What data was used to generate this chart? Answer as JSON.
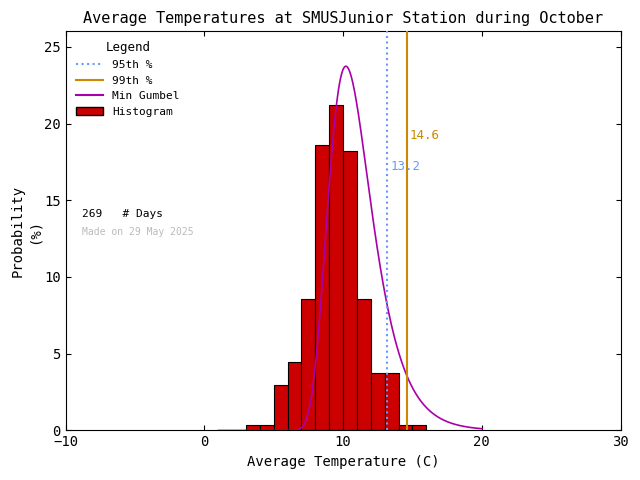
{
  "title": "Average Temperatures at SMUSJunior Station during October",
  "xlabel": "Average Temperature (C)",
  "ylabel": "Probability\n(%)",
  "xlim": [
    -10,
    30
  ],
  "ylim": [
    0,
    26
  ],
  "bar_left_edges": [
    3,
    4,
    5,
    6,
    7,
    8,
    9,
    10,
    11,
    12,
    13,
    14,
    15,
    16
  ],
  "bar_heights": [
    0.37,
    0.37,
    2.97,
    4.46,
    8.55,
    18.59,
    21.19,
    18.22,
    8.55,
    3.72,
    3.72,
    0.37,
    0.37,
    0.0
  ],
  "bar_color": "#cc0000",
  "bar_edge_color": "#000000",
  "gumbel_mu": 10.2,
  "gumbel_beta": 1.55,
  "percentile_95": 13.2,
  "percentile_99": 14.6,
  "percentile_95_color": "#6699ff",
  "percentile_99_color": "#cc8800",
  "gumbel_color": "#aa00aa",
  "n_days": 269,
  "made_on": "Made on 29 May 2025",
  "background_color": "#ffffff",
  "title_fontsize": 11,
  "axis_fontsize": 10,
  "tick_fontsize": 10,
  "legend_title": "Legend"
}
